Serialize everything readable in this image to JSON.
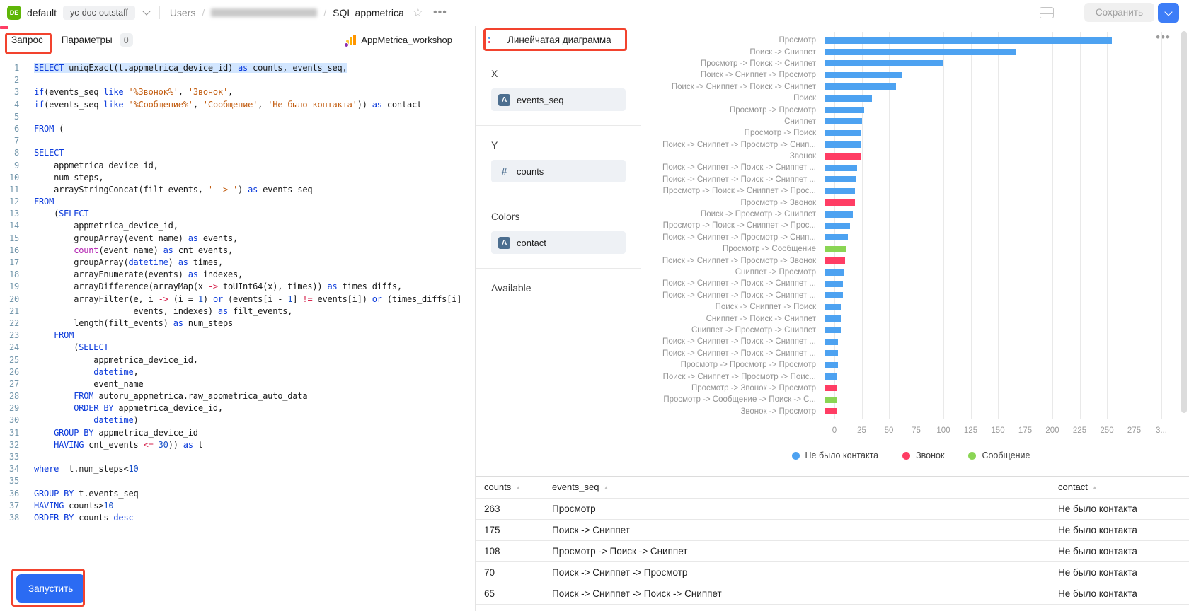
{
  "topbar": {
    "logo_text": "DE",
    "workspace": "default",
    "workspace_tag": "yc-doc-outstaff",
    "breadcrumb": {
      "root": "Users",
      "sep": "/",
      "current": "SQL appmetrica"
    },
    "save_label": "Сохранить"
  },
  "editor": {
    "tabs": {
      "query": "Запрос",
      "params": "Параметры",
      "params_count": "0"
    },
    "connection_label": "AppMetrica_workshop",
    "run_label": "Запустить",
    "code_lines": [
      {
        "n": 1,
        "sel": true,
        "toks": [
          [
            "k",
            "SELECT"
          ],
          [
            "p",
            " uniqExact(t.appmetrica_device_id) "
          ],
          [
            "k",
            "as"
          ],
          [
            "p",
            " counts, events_seq,"
          ]
        ]
      },
      {
        "n": 2,
        "toks": []
      },
      {
        "n": 3,
        "toks": [
          [
            "k",
            "if"
          ],
          [
            "p",
            "(events_seq "
          ],
          [
            "k",
            "like"
          ],
          [
            "p",
            " "
          ],
          [
            "s",
            "'%Звонок%'"
          ],
          [
            "p",
            ", "
          ],
          [
            "s",
            "'Звонок'"
          ],
          [
            "p",
            ","
          ]
        ]
      },
      {
        "n": 4,
        "toks": [
          [
            "k",
            "if"
          ],
          [
            "p",
            "(events_seq "
          ],
          [
            "k",
            "like"
          ],
          [
            "p",
            " "
          ],
          [
            "s",
            "'%Сообщение%'"
          ],
          [
            "p",
            ", "
          ],
          [
            "s",
            "'Сообщение'"
          ],
          [
            "p",
            ", "
          ],
          [
            "s",
            "'Не было контакта'"
          ],
          [
            "p",
            ")) "
          ],
          [
            "k",
            "as"
          ],
          [
            "p",
            " contact"
          ]
        ]
      },
      {
        "n": 5,
        "toks": []
      },
      {
        "n": 6,
        "toks": [
          [
            "k",
            "FROM"
          ],
          [
            "p",
            " ("
          ]
        ]
      },
      {
        "n": 7,
        "toks": []
      },
      {
        "n": 8,
        "toks": [
          [
            "k",
            "SELECT"
          ]
        ]
      },
      {
        "n": 9,
        "toks": [
          [
            "p",
            "    appmetrica_device_id,"
          ]
        ]
      },
      {
        "n": 10,
        "toks": [
          [
            "p",
            "    num_steps,"
          ]
        ]
      },
      {
        "n": 11,
        "toks": [
          [
            "p",
            "    arrayStringConcat(filt_events, "
          ],
          [
            "s",
            "' -> '"
          ],
          [
            "p",
            ") "
          ],
          [
            "k",
            "as"
          ],
          [
            "p",
            " events_seq"
          ]
        ]
      },
      {
        "n": 12,
        "toks": [
          [
            "k",
            "FROM"
          ]
        ]
      },
      {
        "n": 13,
        "toks": [
          [
            "p",
            "    ("
          ],
          [
            "k",
            "SELECT"
          ]
        ]
      },
      {
        "n": 14,
        "toks": [
          [
            "p",
            "        appmetrica_device_id,"
          ]
        ]
      },
      {
        "n": 15,
        "toks": [
          [
            "p",
            "        groupArray(event_name) "
          ],
          [
            "k",
            "as"
          ],
          [
            "p",
            " events,"
          ]
        ]
      },
      {
        "n": 16,
        "toks": [
          [
            "p",
            "        "
          ],
          [
            "f",
            "count"
          ],
          [
            "p",
            "(event_name) "
          ],
          [
            "k",
            "as"
          ],
          [
            "p",
            " cnt_events,"
          ]
        ]
      },
      {
        "n": 17,
        "toks": [
          [
            "p",
            "        groupArray("
          ],
          [
            "k",
            "datetime"
          ],
          [
            "p",
            ") "
          ],
          [
            "k",
            "as"
          ],
          [
            "p",
            " times,"
          ]
        ]
      },
      {
        "n": 18,
        "toks": [
          [
            "p",
            "        arrayEnumerate(events) "
          ],
          [
            "k",
            "as"
          ],
          [
            "p",
            " indexes,"
          ]
        ]
      },
      {
        "n": 19,
        "toks": [
          [
            "p",
            "        arrayDifference(arrayMap(x "
          ],
          [
            "o",
            "->"
          ],
          [
            "p",
            " toUInt64(x), times)) "
          ],
          [
            "k",
            "as"
          ],
          [
            "p",
            " times_diffs,"
          ]
        ]
      },
      {
        "n": 20,
        "toks": [
          [
            "p",
            "        arrayFilter(e, i "
          ],
          [
            "o",
            "->"
          ],
          [
            "p",
            " (i = "
          ],
          [
            "n",
            "1"
          ],
          [
            "p",
            ") "
          ],
          [
            "k",
            "or"
          ],
          [
            "p",
            " (events[i - "
          ],
          [
            "n",
            "1"
          ],
          [
            "p",
            "] "
          ],
          [
            "o",
            "!="
          ],
          [
            "p",
            " events[i]) "
          ],
          [
            "k",
            "or"
          ],
          [
            "p",
            " (times_diffs[i]"
          ]
        ]
      },
      {
        "n": 21,
        "toks": [
          [
            "p",
            "                    events, indexes) "
          ],
          [
            "k",
            "as"
          ],
          [
            "p",
            " filt_events,"
          ]
        ]
      },
      {
        "n": 22,
        "toks": [
          [
            "p",
            "        length(filt_events) "
          ],
          [
            "k",
            "as"
          ],
          [
            "p",
            " num_steps"
          ]
        ]
      },
      {
        "n": 23,
        "toks": [
          [
            "p",
            "    "
          ],
          [
            "k",
            "FROM"
          ]
        ]
      },
      {
        "n": 24,
        "toks": [
          [
            "p",
            "        ("
          ],
          [
            "k",
            "SELECT"
          ]
        ]
      },
      {
        "n": 25,
        "toks": [
          [
            "p",
            "            appmetrica_device_id,"
          ]
        ]
      },
      {
        "n": 26,
        "toks": [
          [
            "p",
            "            "
          ],
          [
            "k",
            "datetime"
          ],
          [
            "p",
            ","
          ]
        ]
      },
      {
        "n": 27,
        "toks": [
          [
            "p",
            "            event_name"
          ]
        ]
      },
      {
        "n": 28,
        "toks": [
          [
            "p",
            "        "
          ],
          [
            "k",
            "FROM"
          ],
          [
            "p",
            " autoru_appmetrica.raw_appmetrica_auto_data"
          ]
        ]
      },
      {
        "n": 29,
        "toks": [
          [
            "p",
            "        "
          ],
          [
            "k",
            "ORDER BY"
          ],
          [
            "p",
            " appmetrica_device_id,"
          ]
        ]
      },
      {
        "n": 30,
        "toks": [
          [
            "p",
            "            "
          ],
          [
            "k",
            "datetime"
          ],
          [
            "p",
            ")"
          ]
        ]
      },
      {
        "n": 31,
        "toks": [
          [
            "p",
            "    "
          ],
          [
            "k",
            "GROUP BY"
          ],
          [
            "p",
            " appmetrica_device_id"
          ]
        ]
      },
      {
        "n": 32,
        "toks": [
          [
            "p",
            "    "
          ],
          [
            "k",
            "HAVING"
          ],
          [
            "p",
            " cnt_events "
          ],
          [
            "o",
            "<="
          ],
          [
            "p",
            " "
          ],
          [
            "n",
            "30"
          ],
          [
            "p",
            ")) "
          ],
          [
            "k",
            "as"
          ],
          [
            "p",
            " t"
          ]
        ]
      },
      {
        "n": 33,
        "toks": []
      },
      {
        "n": 34,
        "toks": [
          [
            "k",
            "where"
          ],
          [
            "p",
            "  t.num_steps<"
          ],
          [
            "n",
            "10"
          ]
        ]
      },
      {
        "n": 35,
        "toks": []
      },
      {
        "n": 36,
        "toks": [
          [
            "k",
            "GROUP BY"
          ],
          [
            "p",
            " t.events_seq"
          ]
        ]
      },
      {
        "n": 37,
        "toks": [
          [
            "k",
            "HAVING"
          ],
          [
            "p",
            " counts>"
          ],
          [
            "n",
            "10"
          ]
        ]
      },
      {
        "n": 38,
        "toks": [
          [
            "k",
            "ORDER BY"
          ],
          [
            "p",
            " counts "
          ],
          [
            "k",
            "desc"
          ]
        ]
      }
    ]
  },
  "config": {
    "chart_type_label": "Линейчатая диаграмма",
    "sections": [
      {
        "label": "X",
        "field": {
          "name": "events_seq",
          "type": "string"
        }
      },
      {
        "label": "Y",
        "field": {
          "name": "counts",
          "type": "number"
        }
      },
      {
        "label": "Colors",
        "field": {
          "name": "contact",
          "type": "string"
        }
      },
      {
        "label": "Available",
        "field": null
      }
    ]
  },
  "chart_data": {
    "type": "bar",
    "orientation": "horizontal",
    "title": "",
    "xlabel": "",
    "ylabel": "",
    "xlim": [
      0,
      300
    ],
    "grid": true,
    "legend_position": "bottom",
    "xticks": [
      0,
      25,
      50,
      75,
      100,
      125,
      150,
      175,
      200,
      225,
      250,
      275,
      300
    ],
    "xtick_labels": [
      "0",
      "25",
      "50",
      "75",
      "100",
      "125",
      "150",
      "175",
      "200",
      "225",
      "250",
      "275",
      "3..."
    ],
    "legend": [
      {
        "label": "Не было контакта",
        "color": "#4DA2F1"
      },
      {
        "label": "Звонок",
        "color": "#FF3D64"
      },
      {
        "label": "Сообщение",
        "color": "#8AD554"
      }
    ],
    "bars": [
      [
        "Просмотр",
        263,
        0
      ],
      [
        "Поиск -> Сниппет",
        175,
        0
      ],
      [
        "Просмотр -> Поиск -> Сниппет",
        108,
        0
      ],
      [
        "Поиск -> Сниппет -> Просмотр",
        70,
        0
      ],
      [
        "Поиск -> Сниппет -> Поиск -> Сниппет",
        65,
        0
      ],
      [
        "Поиск",
        43,
        0
      ],
      [
        "Просмотр -> Просмотр",
        36,
        0
      ],
      [
        "Сниппет",
        34,
        0
      ],
      [
        "Просмотр -> Поиск",
        33,
        0
      ],
      [
        "Поиск -> Сниппет -> Просмотр -> Снип...",
        33,
        0
      ],
      [
        "Звонок",
        33,
        1
      ],
      [
        "Поиск -> Сниппет -> Поиск -> Сниппет ...",
        29,
        0
      ],
      [
        "Поиск -> Сниппет -> Поиск -> Сниппет ...",
        28,
        0
      ],
      [
        "Просмотр -> Поиск -> Сниппет -> Прос...",
        27,
        0
      ],
      [
        "Просмотр -> Звонок",
        27,
        1
      ],
      [
        "Поиск -> Просмотр -> Сниппет",
        25,
        0
      ],
      [
        "Просмотр -> Поиск -> Сниппет -> Прос...",
        23,
        0
      ],
      [
        "Поиск -> Сниппет -> Просмотр -> Снип...",
        21,
        0
      ],
      [
        "Просмотр -> Сообщение",
        19,
        2
      ],
      [
        "Поиск -> Сниппет -> Просмотр -> Звонок",
        18,
        1
      ],
      [
        "Сниппет -> Просмотр",
        17,
        0
      ],
      [
        "Поиск -> Сниппет -> Поиск -> Сниппет ...",
        16,
        0
      ],
      [
        "Поиск -> Сниппет -> Поиск -> Сниппет ...",
        16,
        0
      ],
      [
        "Поиск -> Сниппет -> Поиск",
        14,
        0
      ],
      [
        "Сниппет -> Поиск -> Сниппет",
        14,
        0
      ],
      [
        "Сниппет -> Просмотр -> Сниппет",
        14,
        0
      ],
      [
        "Поиск -> Сниппет -> Поиск -> Сниппет ...",
        12,
        0
      ],
      [
        "Поиск -> Сниппет -> Поиск -> Сниппет ...",
        12,
        0
      ],
      [
        "Просмотр -> Просмотр -> Просмотр",
        12,
        0
      ],
      [
        "Поиск -> Сниппет -> Просмотр -> Поис...",
        11,
        0
      ],
      [
        "Просмотр -> Звонок -> Просмотр",
        11,
        1
      ],
      [
        "Просмотр -> Сообщение -> Поиск -> С...",
        11,
        2
      ],
      [
        "Звонок -> Просмотр",
        11,
        1
      ]
    ]
  },
  "table": {
    "columns": [
      "counts",
      "events_seq",
      "contact"
    ],
    "rows": [
      [
        "263",
        "Просмотр",
        "Не было контакта"
      ],
      [
        "175",
        "Поиск -> Сниппет",
        "Не было контакта"
      ],
      [
        "108",
        "Просмотр -> Поиск -> Сниппет",
        "Не было контакта"
      ],
      [
        "70",
        "Поиск -> Сниппет -> Просмотр",
        "Не было контакта"
      ],
      [
        "65",
        "Поиск -> Сниппет -> Поиск -> Сниппет",
        "Не было контакта"
      ]
    ]
  }
}
